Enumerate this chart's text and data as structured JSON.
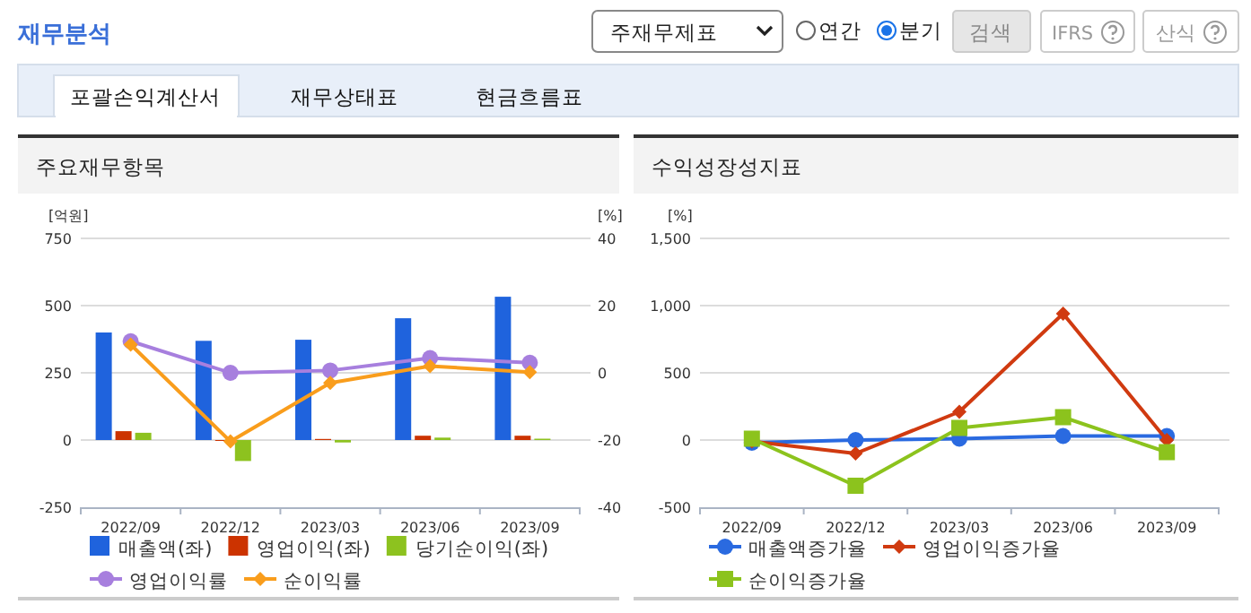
{
  "chart_data": [
    {
      "type": "bar",
      "title": "주요재무항목",
      "categories": [
        "2022/09",
        "2022/12",
        "2023/03",
        "2023/06",
        "2023/09"
      ],
      "ylabel": "[억원]",
      "y2label": "[%]",
      "ylim": [
        -250,
        750
      ],
      "yticks": [
        -250,
        0,
        250,
        500,
        750
      ],
      "y2lim": [
        -40,
        40
      ],
      "y2ticks": [
        -40,
        -20,
        0,
        20,
        40
      ],
      "grid": "y",
      "legend": "bottom",
      "annotations": [
        "재무분석",
        "주재무제표",
        "연간",
        "분기",
        "검색",
        "IFRS",
        "산식",
        "포괄손익계산서",
        "재무상태표",
        "현금흐름표"
      ],
      "series": [
        {
          "name": "매출액(좌)",
          "color": "#1f63dd",
          "values": [
            400,
            369,
            373,
            453,
            533
          ]
        },
        {
          "name": "영업이익(좌)",
          "color": "#cc3300",
          "values": [
            33,
            -3,
            4,
            16,
            16
          ]
        },
        {
          "name": "당기순이익(좌)",
          "color": "#8dc21f",
          "values": [
            27,
            -78,
            -9,
            9,
            5
          ]
        },
        {
          "name": "영업이익률",
          "type": "line",
          "axis": "y2",
          "marker": "circle",
          "color": "#a77fde",
          "values": [
            9.4,
            0,
            0.7,
            4.4,
            3.0
          ]
        },
        {
          "name": "순이익률",
          "type": "line",
          "axis": "y2",
          "marker": "diamond",
          "color": "#f99d1c",
          "values": [
            8.4,
            -20.4,
            -3.0,
            2.0,
            0.2
          ]
        }
      ]
    },
    {
      "type": "line",
      "title": "수익성장성지표",
      "categories": [
        "2022/09",
        "2022/12",
        "2023/03",
        "2023/06",
        "2023/09"
      ],
      "ylabel": "[%]",
      "ylim": [
        -500,
        1500
      ],
      "yticks": [
        -500,
        0,
        500,
        {
          "value": 1000,
          "label": "1,000"
        },
        {
          "value": 1500,
          "label": "1,500"
        }
      ],
      "grid": "y",
      "legend": "bottom",
      "series": [
        {
          "name": "매출액증가율",
          "color": "#2a6ae0",
          "marker": "circle",
          "values": [
            -20,
            0,
            10,
            30,
            30
          ]
        },
        {
          "name": "영업이익증가율",
          "color": "#d03a10",
          "marker": "diamond",
          "values": [
            -10,
            -100,
            210,
            940,
            0
          ]
        },
        {
          "name": "순이익증가율",
          "color": "#8cc31d",
          "marker": "square",
          "values": [
            10,
            -340,
            90,
            170,
            -90
          ]
        }
      ]
    }
  ]
}
